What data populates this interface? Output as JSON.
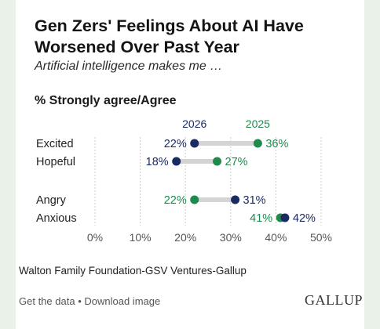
{
  "page": {
    "title": "Gen Zers' Feelings About AI Have Worsened Over Past Year",
    "subtitle": "Artificial intelligence makes me …",
    "metric_label": "% Strongly agree/Agree",
    "source": "Walton Family Foundation-GSV Ventures-Gallup",
    "footer": {
      "get_data": "Get the data",
      "separator": "•",
      "download": "Download image"
    },
    "logo": "GALLUP"
  },
  "colors": {
    "y2026": "#1a2a63",
    "y2025": "#1e8a4c",
    "connector": "#d4d4d4",
    "grid": "#cccccc",
    "background": "#eaf1e9"
  },
  "chart_data": {
    "type": "dumbbell",
    "series": [
      {
        "name": "2026",
        "color_key": "y2026",
        "values": [
          22,
          18,
          31,
          42
        ]
      },
      {
        "name": "2025",
        "color_key": "y2025",
        "values": [
          36,
          27,
          22,
          41
        ]
      }
    ],
    "categories": [
      "Excited",
      "Hopeful",
      "Angry",
      "Anxious"
    ],
    "value_labels": {
      "2026": [
        "22%",
        "18%",
        "31%",
        "42%"
      ],
      "2025": [
        "36%",
        "27%",
        "22%",
        "41%"
      ]
    },
    "xlim": [
      0,
      50
    ],
    "xticks": [
      0,
      10,
      20,
      30,
      40,
      50
    ],
    "xtick_labels": [
      "0%",
      "10%",
      "20%",
      "30%",
      "40%",
      "50%"
    ],
    "grid": true,
    "legend": "top, labels above the first row"
  }
}
